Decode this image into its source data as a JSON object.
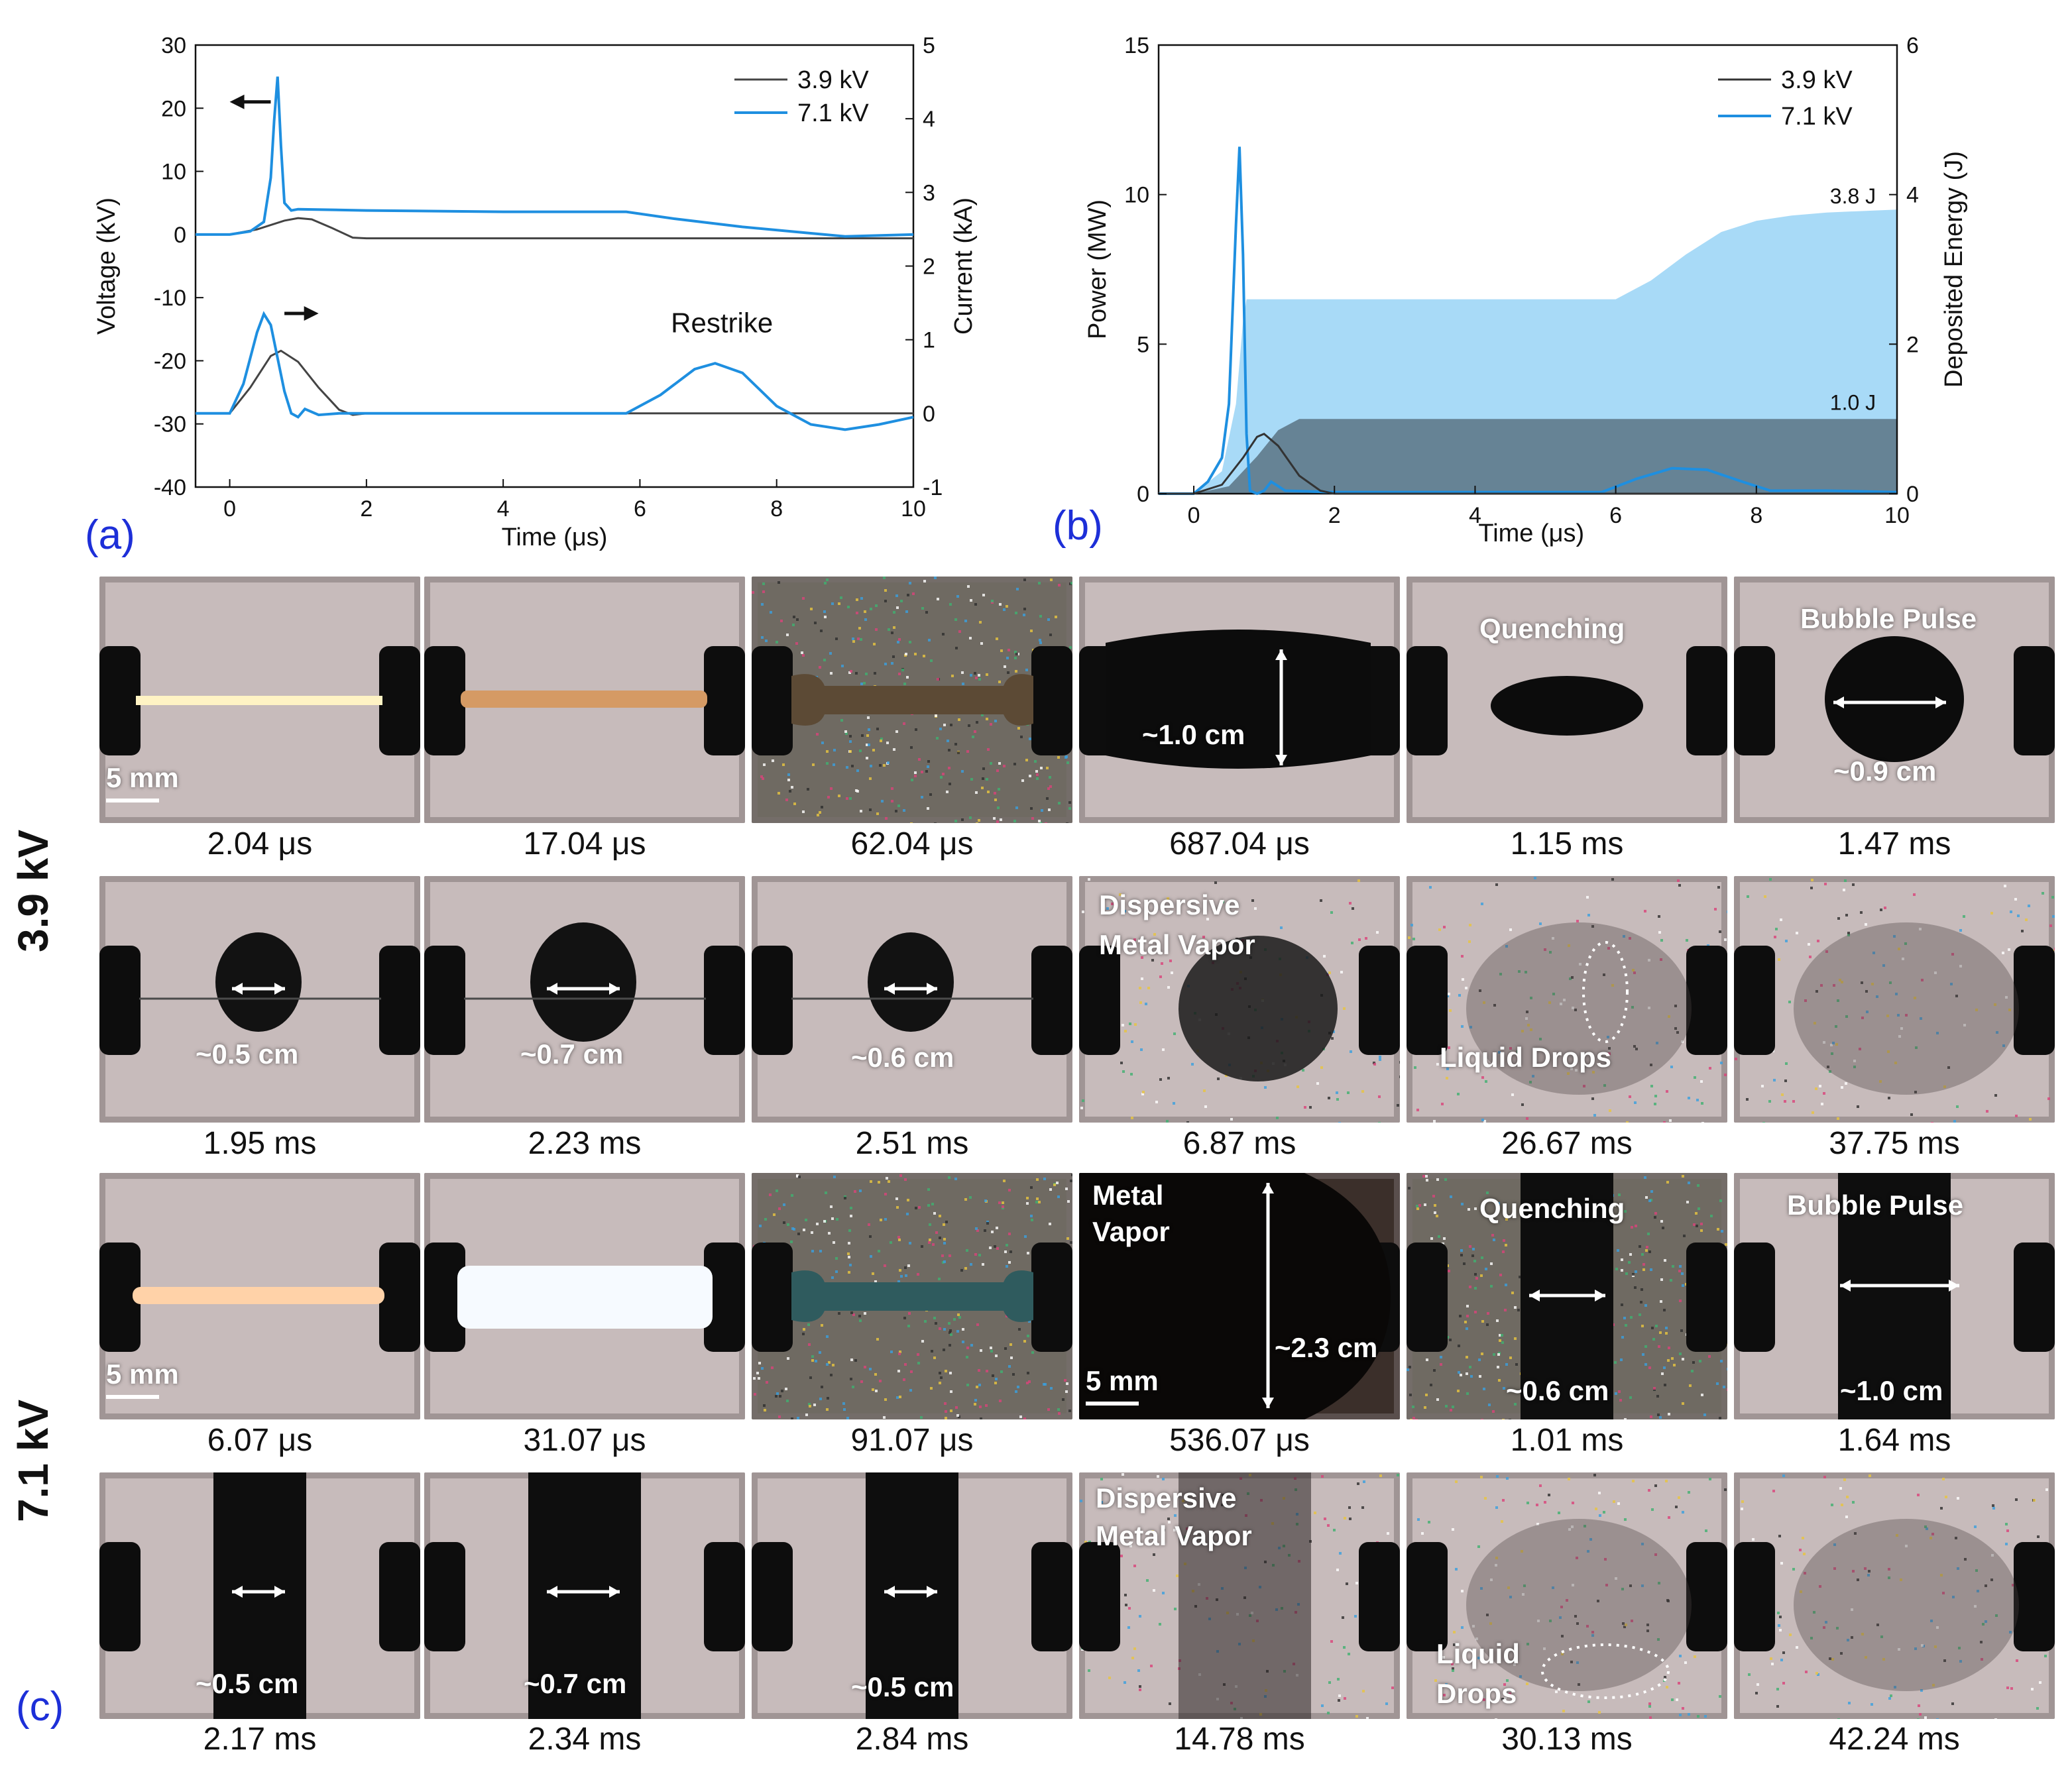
{
  "panels": {
    "a": {
      "letter": "(a)"
    },
    "b": {
      "letter": "(b)"
    },
    "c": {
      "letter": "(c)"
    }
  },
  "chart_data": [
    {
      "type": "line",
      "panel": "(a)",
      "xlabel": "Time (μs)",
      "ylabel": "Voltage (kV)",
      "y2label": "Current (kA)",
      "xlim": [
        -0.5,
        10
      ],
      "ylim": [
        -40,
        30
      ],
      "y2lim": [
        -1,
        5
      ],
      "xticks": [
        0,
        2,
        4,
        6,
        8,
        10
      ],
      "yticks": [
        30,
        20,
        10,
        0,
        -10,
        -20,
        -30,
        -40
      ],
      "y2ticks": [
        5,
        4,
        3,
        2,
        1,
        0,
        -1
      ],
      "legend": {
        "position": "top-right"
      },
      "annotations": [
        "Restrike"
      ],
      "series": [
        {
          "name": "3.9 kV",
          "quantity": "voltage",
          "color": "#444444",
          "x": [
            -0.5,
            0,
            0.4,
            0.8,
            1.0,
            1.2,
            1.5,
            1.8,
            2.0,
            4,
            6,
            8,
            10
          ],
          "y": [
            0,
            0,
            0.8,
            2.2,
            2.6,
            2.4,
            1.0,
            -0.5,
            -0.6,
            -0.6,
            -0.6,
            -0.6,
            -0.6
          ]
        },
        {
          "name": "7.1 kV",
          "quantity": "voltage",
          "color": "#1e8fe0",
          "x": [
            -0.5,
            0,
            0.3,
            0.5,
            0.6,
            0.65,
            0.7,
            0.75,
            0.8,
            0.9,
            1.0,
            2,
            4,
            5.8,
            6.5,
            7.5,
            8.5,
            9,
            10
          ],
          "y": [
            0,
            0,
            0.5,
            2,
            9,
            18,
            25,
            14,
            5,
            3.8,
            4,
            3.8,
            3.6,
            3.6,
            2.5,
            1.2,
            0.2,
            -0.3,
            0
          ]
        },
        {
          "name": "3.9 kV",
          "quantity": "current",
          "color": "#444444",
          "x": [
            -0.5,
            0,
            0.3,
            0.6,
            0.75,
            1.0,
            1.3,
            1.6,
            1.8,
            2.0,
            4,
            6,
            8,
            10
          ],
          "y": [
            0,
            0,
            0.35,
            0.78,
            0.85,
            0.7,
            0.35,
            0.05,
            -0.02,
            0,
            0,
            0,
            0,
            0
          ]
        },
        {
          "name": "7.1 kV",
          "quantity": "current",
          "color": "#1e8fe0",
          "x": [
            -0.5,
            0,
            0.2,
            0.4,
            0.5,
            0.6,
            0.8,
            0.9,
            1.0,
            1.1,
            1.3,
            1.6,
            2,
            4,
            5.8,
            6.3,
            6.8,
            7.1,
            7.5,
            8.0,
            8.5,
            9.0,
            9.5,
            10
          ],
          "y": [
            0,
            0,
            0.4,
            1.1,
            1.35,
            1.2,
            0.3,
            0.0,
            -0.05,
            0.06,
            -0.02,
            0,
            0,
            0,
            0,
            0.25,
            0.6,
            0.68,
            0.55,
            0.1,
            -0.15,
            -0.22,
            -0.15,
            -0.05
          ]
        }
      ]
    },
    {
      "type": "area",
      "panel": "(b)",
      "xlabel": "Time (μs)",
      "ylabel": "Power (MW)",
      "y2label": "Deposited Energy (J)",
      "xlim": [
        -0.5,
        10
      ],
      "ylim": [
        0,
        15
      ],
      "y2lim": [
        0,
        6
      ],
      "xticks": [
        0,
        2,
        4,
        6,
        8,
        10
      ],
      "yticks": [
        0,
        5,
        10,
        15
      ],
      "y2ticks": [
        0,
        2,
        4,
        6
      ],
      "legend": {
        "position": "top-right"
      },
      "annotations": [
        "3.8 J",
        "1.0 J"
      ],
      "series": [
        {
          "name": "7.1 kV",
          "quantity": "power",
          "color": "#1e8fe0",
          "x": [
            -0.5,
            0,
            0.2,
            0.4,
            0.5,
            0.6,
            0.65,
            0.7,
            0.75,
            0.8,
            0.9,
            1.0,
            1.1,
            1.3,
            2,
            4,
            5.8,
            6.3,
            6.8,
            7.3,
            7.8,
            8.2,
            9,
            10
          ],
          "y": [
            0,
            0,
            0.4,
            1.2,
            3,
            9,
            11.6,
            8,
            2,
            0.1,
            0,
            0.1,
            0.4,
            0.1,
            0.05,
            0.05,
            0.05,
            0.5,
            0.85,
            0.8,
            0.4,
            0.1,
            0.1,
            0.05
          ]
        },
        {
          "name": "3.9 kV",
          "quantity": "power",
          "color": "#333333",
          "x": [
            -0.5,
            0,
            0.4,
            0.7,
            0.9,
            1.0,
            1.2,
            1.5,
            1.8,
            2.0,
            4,
            10
          ],
          "y": [
            0,
            0,
            0.3,
            1.2,
            1.9,
            2.0,
            1.6,
            0.6,
            0.1,
            0,
            0,
            0
          ]
        },
        {
          "name": "7.1 kV",
          "quantity": "deposited energy",
          "color": "#a8daf7",
          "x": [
            -0.5,
            0,
            0.4,
            0.6,
            0.7,
            0.75,
            6.0,
            6.5,
            7.0,
            7.5,
            8.0,
            8.5,
            9.0,
            10
          ],
          "y": [
            0,
            0,
            0.3,
            1.2,
            2.3,
            2.6,
            2.6,
            2.85,
            3.2,
            3.5,
            3.65,
            3.72,
            3.76,
            3.8
          ]
        },
        {
          "name": "3.9 kV",
          "quantity": "deposited energy",
          "color": "#5b7384",
          "x": [
            -0.5,
            0,
            0.5,
            0.9,
            1.2,
            1.5,
            2,
            10
          ],
          "y": [
            0,
            0,
            0.1,
            0.5,
            0.85,
            1.0,
            1.0,
            1.0
          ]
        }
      ]
    }
  ],
  "legend_labels": [
    "3.9 kV",
    "7.1 kV"
  ],
  "panel_c": {
    "row_labels": [
      "3.9 kV",
      "7.1 kV"
    ],
    "scale_label": "5 mm",
    "rows": [
      {
        "frames": [
          {
            "time": "2.04 μs",
            "scene": "wire-glow",
            "annotations": []
          },
          {
            "time": "17.04 μs",
            "scene": "wire-copper",
            "annotations": []
          },
          {
            "time": "62.04 μs",
            "scene": "wire-dark-speckle",
            "annotations": []
          },
          {
            "time": "687.04 μs",
            "scene": "bubble-large",
            "annotations": [
              "~1.0 cm"
            ]
          },
          {
            "time": "1.15 ms",
            "scene": "bubble-small",
            "annotations": [
              "Quenching"
            ]
          },
          {
            "time": "1.47 ms",
            "scene": "bubble-pulse",
            "annotations": [
              "Bubble Pulse",
              "~0.9 cm"
            ]
          }
        ]
      },
      {
        "frames": [
          {
            "time": "1.95 ms",
            "scene": "blob-small",
            "annotations": [
              "~0.5 cm"
            ]
          },
          {
            "time": "2.23 ms",
            "scene": "blob-mid",
            "annotations": [
              "~0.7 cm"
            ]
          },
          {
            "time": "2.51 ms",
            "scene": "blob-small2",
            "annotations": [
              "~0.6 cm"
            ]
          },
          {
            "time": "6.87 ms",
            "scene": "vapor",
            "annotations": [
              "Dispersive",
              "Metal Vapor"
            ]
          },
          {
            "time": "26.67 ms",
            "scene": "drops",
            "annotations": [
              "Liquid Drops"
            ]
          },
          {
            "time": "37.75 ms",
            "scene": "haze",
            "annotations": []
          }
        ]
      },
      {
        "frames": [
          {
            "time": "6.07 μs",
            "scene": "wire-bright-orange",
            "annotations": []
          },
          {
            "time": "31.07 μs",
            "scene": "wire-white",
            "annotations": []
          },
          {
            "time": "91.07 μs",
            "scene": "wire-teal-speckle",
            "annotations": []
          },
          {
            "time": "536.07 μs",
            "scene": "bubble-huge",
            "annotations": [
              "Metal",
              "Vapor",
              "~2.3 cm"
            ]
          },
          {
            "time": "1.01 ms",
            "scene": "column-speckle",
            "annotations": [
              "Quenching",
              "~0.6 cm"
            ]
          },
          {
            "time": "1.64 ms",
            "scene": "column-pulse",
            "annotations": [
              "Bubble Pulse",
              "~1.0 cm"
            ]
          }
        ]
      },
      {
        "frames": [
          {
            "time": "2.17 ms",
            "scene": "column-a",
            "annotations": [
              "~0.5 cm"
            ]
          },
          {
            "time": "2.34 ms",
            "scene": "column-b",
            "annotations": [
              "~0.7 cm"
            ]
          },
          {
            "time": "2.84 ms",
            "scene": "column-c",
            "annotations": [
              "~0.5 cm"
            ]
          },
          {
            "time": "14.78 ms",
            "scene": "vapor-column",
            "annotations": [
              "Dispersive",
              "Metal Vapor"
            ]
          },
          {
            "time": "30.13 ms",
            "scene": "drops2",
            "annotations": [
              "Liquid",
              "Drops"
            ]
          },
          {
            "time": "42.24 ms",
            "scene": "haze2",
            "annotations": []
          }
        ]
      }
    ]
  }
}
